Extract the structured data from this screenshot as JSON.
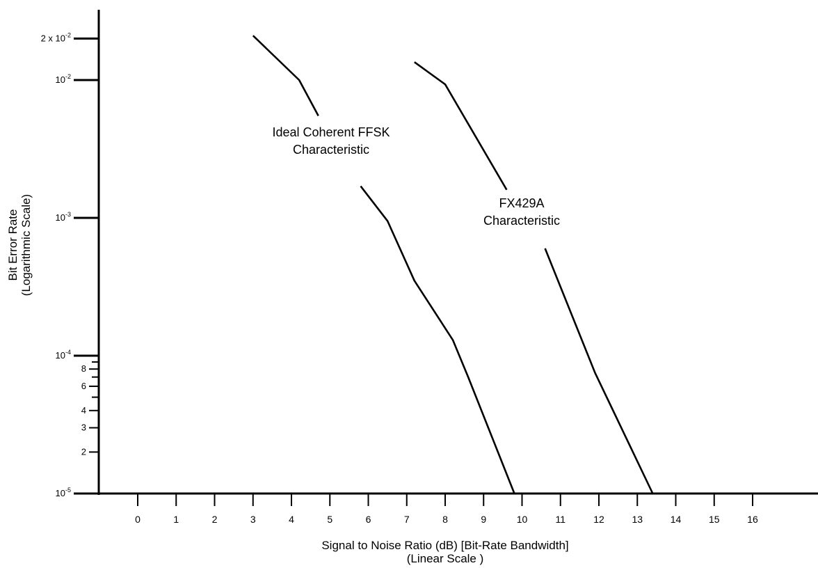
{
  "chart_data": {
    "type": "line",
    "xlabel": "Signal to Noise Ratio (dB) [Bit-Rate Bandwidth]",
    "xlabel_note": "(Linear Scale )",
    "ylabel": "Bit Error Rate",
    "ylabel_note": "(Logarithmic Scale)",
    "y_scale": "log",
    "xlim": [
      -1,
      17
    ],
    "ylim": [
      1e-05,
      0.02
    ],
    "grid": false,
    "x_ticks": [
      "0",
      "1",
      "2",
      "3",
      "4",
      "5",
      "6",
      "7",
      "8",
      "9",
      "10",
      "11",
      "12",
      "13",
      "14",
      "15",
      "16"
    ],
    "y_tick_labels": [
      {
        "value": 1e-05,
        "label": "10^-5",
        "base": "10",
        "exp": "-5"
      },
      {
        "value": 2e-05,
        "label": "2"
      },
      {
        "value": 3e-05,
        "label": "3"
      },
      {
        "value": 4e-05,
        "label": "4"
      },
      {
        "value": 6e-05,
        "label": "6"
      },
      {
        "value": 8e-05,
        "label": "8"
      },
      {
        "value": 0.0001,
        "label": "10^-4",
        "base": "10",
        "exp": "-4"
      },
      {
        "value": 0.001,
        "label": "10^-3",
        "base": "10",
        "exp": "-3"
      },
      {
        "value": 0.01,
        "label": "10^-2",
        "base": "10",
        "exp": "-2"
      },
      {
        "value": 0.02,
        "label": "2 x 10^-2",
        "base": "2 x 10",
        "exp": "-2"
      }
    ],
    "y_minor_ticks": [
      5e-05,
      7e-05,
      9e-05
    ],
    "series": [
      {
        "annotation": [
          "Ideal Coherent FFSK",
          "Characteristic"
        ],
        "segments": [
          {
            "x": [
              3.0,
              4.2,
              4.7
            ],
            "y": [
              0.021,
              0.01,
              0.0055
            ]
          },
          {
            "x": [
              5.8,
              6.5,
              7.2,
              8.2,
              8.6,
              9.8
            ],
            "y": [
              0.0017,
              0.00095,
              0.00035,
              0.00013,
              7e-05,
              1e-05
            ]
          }
        ]
      },
      {
        "annotation": [
          "FX429A",
          "Characteristic"
        ],
        "segments": [
          {
            "x": [
              7.2,
              8.0,
              9.6
            ],
            "y": [
              0.0135,
              0.0093,
              0.0016
            ]
          },
          {
            "x": [
              10.6,
              11.9,
              13.4
            ],
            "y": [
              0.0006,
              7.5e-05,
              1e-05
            ]
          }
        ]
      }
    ]
  }
}
